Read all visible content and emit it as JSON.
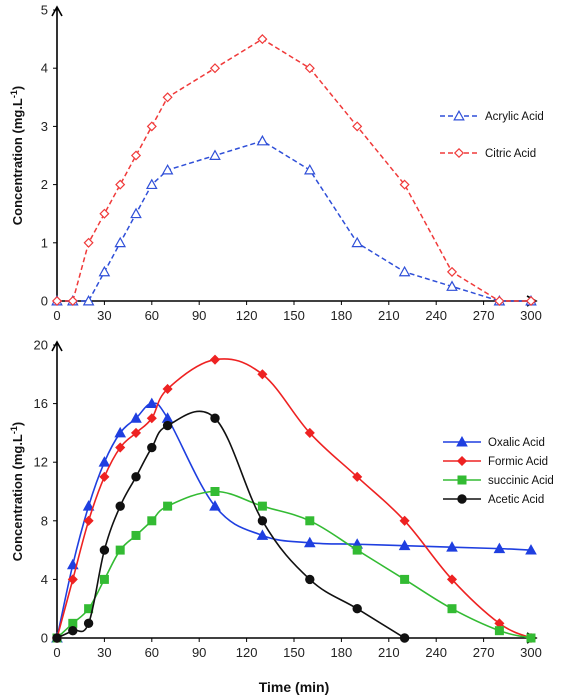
{
  "chart_data": [
    {
      "type": "line",
      "ylabel_main": "Concentration  (mg.L",
      "ylabel_sup": "-1",
      "ylabel_end": ")",
      "xlabel": "",
      "xlim": [
        0,
        300
      ],
      "ylim": [
        0,
        5
      ],
      "x_ticks": [
        0,
        30,
        60,
        90,
        120,
        150,
        180,
        210,
        240,
        270,
        300
      ],
      "y_ticks": [
        0,
        1,
        2,
        3,
        4,
        5
      ],
      "grid": false,
      "legend_position": "right",
      "series": [
        {
          "name": "Acrylic Acid",
          "color": "#2f4fd8",
          "marker": "triangle-open",
          "dash": true,
          "x": [
            0,
            10,
            20,
            30,
            40,
            50,
            60,
            70,
            100,
            130,
            160,
            190,
            220,
            250,
            280,
            300
          ],
          "y": [
            0,
            0,
            0,
            0.5,
            1.0,
            1.5,
            2.0,
            2.25,
            2.5,
            2.75,
            2.25,
            1.0,
            0.5,
            0.25,
            0,
            0
          ]
        },
        {
          "name": "Citric Acid",
          "color": "#f03a3a",
          "marker": "diamond-open",
          "dash": true,
          "x": [
            0,
            10,
            20,
            30,
            40,
            50,
            60,
            70,
            100,
            130,
            160,
            190,
            220,
            250,
            280,
            300
          ],
          "y": [
            0,
            0,
            1.0,
            1.5,
            2.0,
            2.5,
            3.0,
            3.5,
            4.0,
            4.5,
            4.0,
            3.0,
            2.0,
            0.5,
            0,
            0
          ]
        }
      ]
    },
    {
      "type": "line",
      "ylabel_main": "Concentration  (mg.L",
      "ylabel_sup": "-1",
      "ylabel_end": ")",
      "xlabel": "Time (min)",
      "xlim": [
        0,
        300
      ],
      "ylim": [
        0,
        20
      ],
      "x_ticks": [
        0,
        30,
        60,
        90,
        120,
        150,
        180,
        210,
        240,
        270,
        300
      ],
      "y_ticks": [
        0,
        4,
        8,
        12,
        16,
        20
      ],
      "grid": false,
      "legend_position": "right",
      "series": [
        {
          "name": "Oxalic Acid",
          "color": "#1f3fe0",
          "marker": "triangle",
          "x": [
            0,
            10,
            20,
            30,
            40,
            50,
            60,
            70,
            100,
            130,
            160,
            190,
            220,
            250,
            280,
            300
          ],
          "y": [
            0,
            5,
            9,
            12,
            14,
            15,
            16,
            15,
            9,
            7,
            6.5,
            6.4,
            6.3,
            6.2,
            6.1,
            6.0
          ]
        },
        {
          "name": "Formic Acid",
          "color": "#ee2222",
          "marker": "diamond",
          "x": [
            0,
            10,
            20,
            30,
            40,
            50,
            60,
            70,
            100,
            130,
            160,
            190,
            220,
            250,
            280,
            300
          ],
          "y": [
            0,
            4,
            8,
            11,
            13,
            14,
            15,
            17,
            19,
            18,
            14,
            11,
            8,
            4,
            1,
            0
          ]
        },
        {
          "name": "succinic Acid",
          "color": "#33bb33",
          "marker": "square",
          "x": [
            0,
            10,
            20,
            30,
            40,
            50,
            60,
            70,
            100,
            130,
            160,
            190,
            220,
            250,
            280,
            300
          ],
          "y": [
            0,
            1,
            2,
            4,
            6,
            7,
            8,
            9,
            10,
            9,
            8,
            6,
            4,
            2,
            0.5,
            0
          ]
        },
        {
          "name": "Acetic Acid",
          "color": "#111111",
          "marker": "circle",
          "x": [
            0,
            10,
            20,
            30,
            40,
            50,
            60,
            70,
            100,
            130,
            160,
            190,
            220
          ],
          "y": [
            0,
            0.5,
            1,
            6,
            9,
            11,
            13,
            14.5,
            15,
            8,
            4,
            2,
            0
          ]
        }
      ]
    }
  ]
}
